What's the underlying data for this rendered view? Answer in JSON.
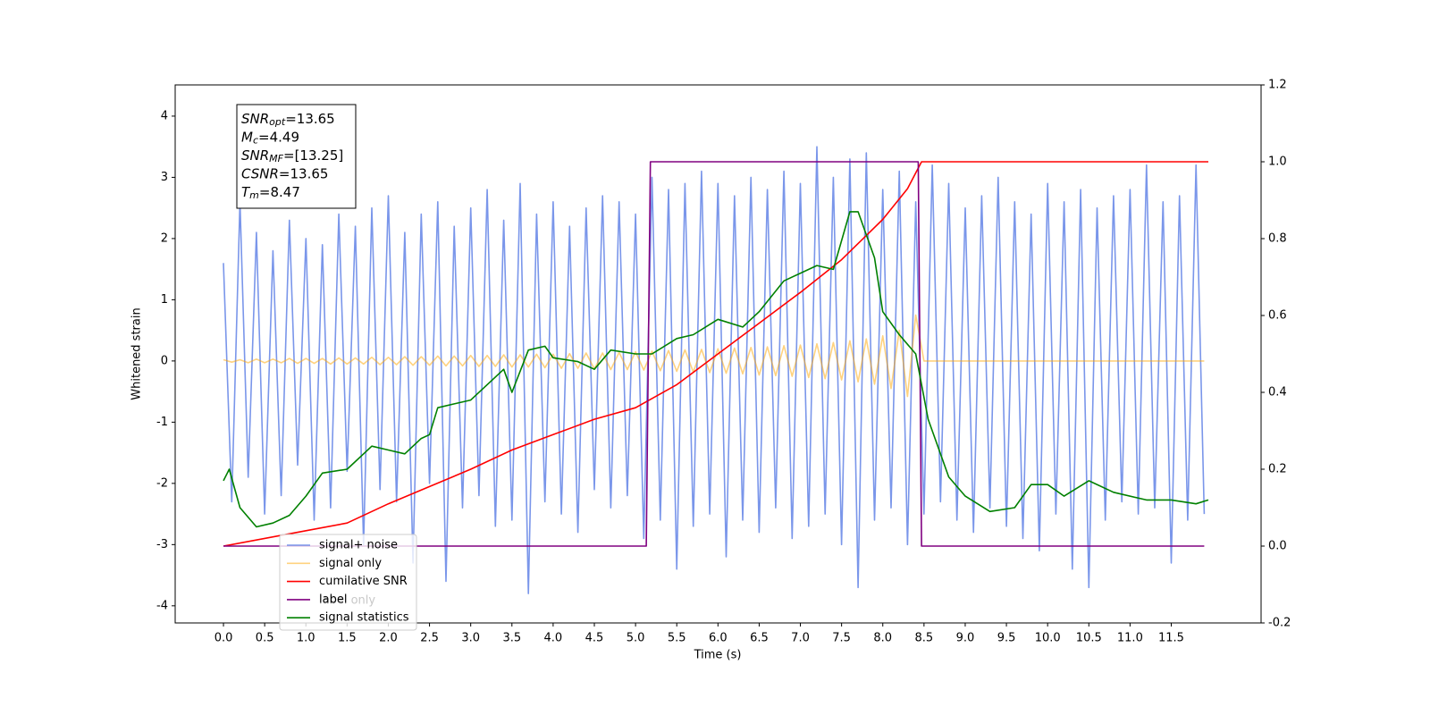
{
  "chart_data": {
    "type": "line",
    "ylabel": "Whitened strain",
    "xlabel": "Time (s)",
    "xlim": [
      -0.586,
      12.59
    ],
    "ylim": [
      -4.28,
      4.51
    ],
    "y2lim": [
      -0.2,
      1.2
    ],
    "xticks": [
      {
        "value": 0,
        "label": "0.0"
      },
      0.5,
      {
        "value": 1,
        "label": "1.0"
      },
      1.5,
      {
        "value": 2,
        "label": "2.0"
      },
      2.5,
      {
        "value": 3,
        "label": "3.0"
      },
      3.5,
      {
        "value": 4,
        "label": "4.0"
      },
      4.5,
      {
        "value": 5,
        "label": "5.0"
      },
      5.5,
      {
        "value": 6,
        "label": "6.0"
      },
      6.5,
      {
        "value": 7,
        "label": "7.0"
      },
      7.5,
      {
        "value": 8,
        "label": "8.0"
      },
      8.5,
      {
        "value": 9,
        "label": "9.0"
      },
      9.5,
      {
        "value": 10,
        "label": "10.0"
      },
      10.5,
      {
        "value": 11,
        "label": "11.0"
      },
      11.5
    ],
    "yticks": [
      -4,
      -3,
      -2,
      -1,
      0,
      1,
      2,
      3,
      4
    ],
    "y2ticks": [
      -0.2,
      {
        "value": 0,
        "label": "0.0"
      },
      0.2,
      0.4,
      0.6,
      0.8,
      {
        "value": 1,
        "label": "1.0"
      },
      1.2
    ],
    "annotation": [
      {
        "main": "SNR",
        "sub": "opt",
        "rest": "=13.65"
      },
      {
        "main": "M",
        "sub": "c",
        "rest": "=4.49"
      },
      {
        "main": "SNR",
        "sub": "MF",
        "rest": "=[13.25]"
      },
      {
        "main": "CSNR",
        "rest": "=13.65"
      },
      {
        "main": "T",
        "sub": "m",
        "rest": "=8.47"
      }
    ],
    "legend_ghost": "label only",
    "legend": "lower left",
    "x": [
      0,
      0.1,
      0.2,
      0.3,
      0.4,
      0.5,
      0.6,
      0.7,
      0.8,
      0.9,
      1,
      1.1,
      1.2,
      1.3,
      1.4,
      1.5,
      1.6,
      1.7,
      1.8,
      1.9,
      2,
      2.1,
      2.2,
      2.3,
      2.4,
      2.5,
      2.6,
      2.7,
      2.8,
      2.9,
      3,
      3.1,
      3.2,
      3.3,
      3.4,
      3.5,
      3.6,
      3.7,
      3.8,
      3.9,
      4,
      4.1,
      4.2,
      4.3,
      4.4,
      4.5,
      4.6,
      4.7,
      4.8,
      4.9,
      5,
      5.1,
      5.2,
      5.3,
      5.4,
      5.5,
      5.6,
      5.7,
      5.8,
      5.9,
      6,
      6.1,
      6.2,
      6.3,
      6.4,
      6.5,
      6.6,
      6.7,
      6.8,
      6.9,
      7,
      7.1,
      7.2,
      7.3,
      7.4,
      7.5,
      7.6,
      7.7,
      7.8,
      7.9,
      8,
      8.1,
      8.2,
      8.3,
      8.4,
      8.5,
      8.6,
      8.7,
      8.8,
      8.9,
      9,
      9.1,
      9.2,
      9.3,
      9.4,
      9.5,
      9.6,
      9.7,
      9.8,
      9.9,
      10,
      10.1,
      10.2,
      10.3,
      10.4,
      10.5,
      10.6,
      10.7,
      10.8,
      10.9,
      11,
      11.1,
      11.2,
      11.3,
      11.4,
      11.5,
      11.6,
      11.7,
      11.8,
      11.9
    ],
    "series": [
      {
        "name": "signal+ noise",
        "color": "#4169e1",
        "alpha": 0.7,
        "values": [
          1.6,
          -2.3,
          2.6,
          -1.9,
          2.1,
          -2.5,
          1.8,
          -2.2,
          2.3,
          -1.7,
          2.0,
          -2.6,
          1.9,
          -2.4,
          2.4,
          -1.8,
          2.2,
          -3.0,
          2.5,
          -2.1,
          2.7,
          -2.3,
          2.1,
          -3.3,
          2.4,
          -2.0,
          2.6,
          -3.6,
          2.2,
          -2.4,
          2.5,
          -2.2,
          2.8,
          -2.7,
          2.3,
          -2.6,
          2.9,
          -3.8,
          2.4,
          -2.3,
          2.6,
          -2.5,
          2.2,
          -2.8,
          2.5,
          -2.1,
          2.7,
          -2.4,
          2.6,
          -2.2,
          2.4,
          -2.9,
          3.0,
          -2.6,
          2.8,
          -3.4,
          2.9,
          -2.7,
          3.1,
          -2.5,
          2.9,
          -3.2,
          2.7,
          -2.6,
          3.0,
          -2.8,
          2.8,
          -2.4,
          3.1,
          -2.9,
          2.9,
          -2.7,
          3.5,
          -2.5,
          3.0,
          -3.0,
          3.3,
          -3.7,
          3.4,
          -2.6,
          2.8,
          -2.4,
          3.1,
          -3.0,
          2.6,
          -2.5,
          3.2,
          -2.3,
          2.9,
          -2.6,
          2.5,
          -2.8,
          2.7,
          -2.4,
          3.0,
          -2.7,
          2.6,
          -2.9,
          2.4,
          -3.1,
          2.9,
          -2.5,
          2.6,
          -3.4,
          2.8,
          -3.7,
          2.5,
          -2.6,
          2.7,
          -2.3,
          2.8,
          -2.5,
          3.2,
          -2.4,
          2.6,
          -3.3,
          2.7,
          -2.6,
          3.2,
          -2.5
        ]
      },
      {
        "name": "signal only",
        "color": "#ffa500",
        "alpha": 0.5,
        "values": [
          0.02,
          -0.02,
          0.02,
          -0.03,
          0.03,
          -0.03,
          0.03,
          -0.03,
          0.04,
          -0.04,
          0.04,
          -0.04,
          0.04,
          -0.05,
          0.05,
          -0.05,
          0.05,
          -0.05,
          0.06,
          -0.06,
          0.06,
          -0.06,
          0.07,
          -0.07,
          0.07,
          -0.07,
          0.08,
          -0.08,
          0.08,
          -0.08,
          0.09,
          -0.09,
          0.09,
          -0.09,
          0.1,
          -0.1,
          0.1,
          -0.1,
          0.11,
          -0.11,
          0.11,
          -0.12,
          0.12,
          -0.12,
          0.13,
          -0.13,
          0.13,
          -0.14,
          0.14,
          -0.14,
          0.15,
          -0.15,
          0.16,
          -0.16,
          0.17,
          -0.17,
          0.18,
          -0.18,
          0.19,
          -0.19,
          0.2,
          -0.2,
          0.21,
          -0.21,
          0.22,
          -0.23,
          0.23,
          -0.24,
          0.25,
          -0.25,
          0.26,
          -0.27,
          0.28,
          -0.29,
          0.3,
          -0.31,
          0.33,
          -0.34,
          0.36,
          -0.38,
          0.41,
          -0.45,
          0.5,
          -0.58,
          0.75,
          0,
          0,
          0,
          0,
          0,
          0,
          0,
          0,
          0,
          0,
          0,
          0,
          0,
          0,
          0,
          0,
          0,
          0,
          0,
          0,
          0,
          0,
          0,
          0,
          0,
          0,
          0,
          0,
          0,
          0,
          0,
          0,
          0,
          0,
          0
        ]
      },
      {
        "name": "cumilative SNR",
        "color": "#ff0000",
        "alpha": 1,
        "axis": "y2",
        "x": [
          0,
          1,
          1.5,
          2,
          2.5,
          3,
          3.5,
          4,
          4.5,
          5,
          5.5,
          6,
          6.5,
          7,
          7.5,
          8,
          8.3,
          8.47,
          11.95
        ],
        "values": [
          0,
          0.04,
          0.06,
          0.11,
          0.155,
          0.2,
          0.25,
          0.29,
          0.33,
          0.36,
          0.42,
          0.5,
          0.58,
          0.66,
          0.745,
          0.85,
          0.93,
          1,
          1
        ]
      },
      {
        "name": "label",
        "color": "#800080",
        "alpha": 1,
        "axis": "y2",
        "x": [
          0,
          5.13,
          5.18,
          8.43,
          8.47,
          11.9
        ],
        "values": [
          0,
          0,
          1,
          1,
          0,
          0
        ]
      },
      {
        "name": "signal statistics",
        "color": "#008000",
        "alpha": 1,
        "axis": "y2",
        "x": [
          0,
          0.07,
          0.2,
          0.4,
          0.6,
          0.8,
          1,
          1.2,
          1.5,
          1.8,
          2,
          2.2,
          2.4,
          2.5,
          2.6,
          2.8,
          3,
          3.2,
          3.4,
          3.5,
          3.7,
          3.9,
          4,
          4.3,
          4.5,
          4.7,
          5,
          5.2,
          5.5,
          5.7,
          6,
          6.3,
          6.5,
          6.8,
          7.2,
          7.4,
          7.6,
          7.7,
          7.9,
          8,
          8.2,
          8.4,
          8.55,
          8.8,
          9,
          9.3,
          9.6,
          9.8,
          10,
          10.2,
          10.5,
          10.8,
          11.2,
          11.5,
          11.8,
          11.95
        ],
        "values": [
          0.17,
          0.2,
          0.1,
          0.05,
          0.06,
          0.08,
          0.13,
          0.19,
          0.2,
          0.26,
          0.25,
          0.24,
          0.28,
          0.29,
          0.36,
          0.37,
          0.38,
          0.42,
          0.46,
          0.4,
          0.51,
          0.52,
          0.49,
          0.48,
          0.46,
          0.51,
          0.5,
          0.5,
          0.54,
          0.55,
          0.59,
          0.57,
          0.61,
          0.69,
          0.73,
          0.72,
          0.87,
          0.87,
          0.75,
          0.61,
          0.55,
          0.5,
          0.33,
          0.18,
          0.13,
          0.09,
          0.1,
          0.16,
          0.16,
          0.13,
          0.17,
          0.14,
          0.12,
          0.12,
          0.11,
          0.12
        ]
      }
    ]
  }
}
